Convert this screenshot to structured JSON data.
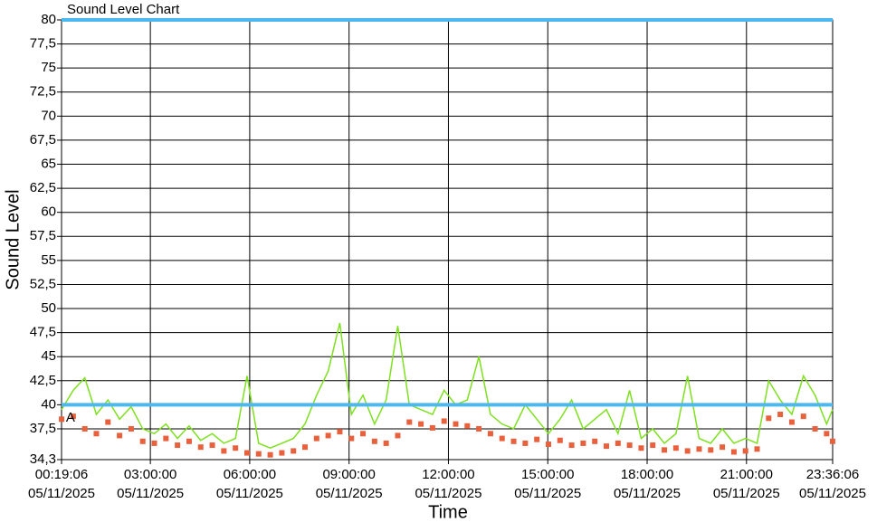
{
  "chart_data": {
    "type": "line",
    "title": "Sound Level Chart",
    "x_label": "Time",
    "y_label": "Sound Level",
    "xlim": [
      0.3183,
      23.6017
    ],
    "ylim": [
      34.3,
      80
    ],
    "xticks": [
      {
        "value": 0.3183,
        "label": "00:19:06 05/11/2025"
      },
      {
        "value": 3,
        "label": "03:00:00 05/11/2025"
      },
      {
        "value": 6,
        "label": "06:00:00 05/11/2025"
      },
      {
        "value": 9,
        "label": "09:00:00 05/11/2025"
      },
      {
        "value": 12,
        "label": "12:00:00 05/11/2025"
      },
      {
        "value": 15,
        "label": "15:00:00 05/11/2025"
      },
      {
        "value": 18,
        "label": "18:00:00 05/11/2025"
      },
      {
        "value": 21,
        "label": "21:00:00 05/11/2025"
      },
      {
        "value": 23.6017,
        "label": "23:36:06 05/11/2025"
      }
    ],
    "yticks": [
      {
        "value": 34.3,
        "label": "34,3"
      },
      {
        "value": 37.5,
        "label": "37,5"
      },
      40,
      {
        "value": 42.5,
        "label": "42,5"
      },
      45,
      {
        "value": 47.5,
        "label": "47,5"
      },
      50,
      {
        "value": 52.5,
        "label": "52,5"
      },
      55,
      {
        "value": 57.5,
        "label": "57,5"
      },
      60,
      {
        "value": 62.5,
        "label": "62,5"
      },
      65,
      {
        "value": 67.5,
        "label": "67,5"
      },
      70,
      {
        "value": 72.5,
        "label": "72,5"
      },
      75,
      {
        "value": 77.5,
        "label": "77,5"
      },
      80
    ],
    "grid": true,
    "thresholds": [
      {
        "value": 40,
        "color": "#4db8f0"
      },
      {
        "value": 80,
        "color": "#4db8f0"
      }
    ],
    "annotation": {
      "text": "A",
      "x": 0.45,
      "y": 38.6
    },
    "x": [
      0.32,
      0.67,
      1.02,
      1.37,
      1.72,
      2.07,
      2.42,
      2.77,
      3.12,
      3.47,
      3.82,
      4.17,
      4.52,
      4.87,
      5.22,
      5.57,
      5.92,
      6.27,
      6.62,
      6.97,
      7.32,
      7.67,
      8.02,
      8.37,
      8.72,
      9.07,
      9.42,
      9.77,
      10.12,
      10.47,
      10.82,
      11.17,
      11.52,
      11.87,
      12.22,
      12.57,
      12.92,
      13.27,
      13.62,
      13.97,
      14.32,
      14.67,
      15.02,
      15.37,
      15.72,
      16.07,
      16.42,
      16.77,
      17.12,
      17.47,
      17.82,
      18.17,
      18.52,
      18.87,
      19.22,
      19.57,
      19.92,
      20.27,
      20.62,
      20.97,
      21.32,
      21.67,
      22.02,
      22.37,
      22.72,
      23.07,
      23.42,
      23.6
    ],
    "series": [
      {
        "color": "#7ee01e",
        "style": "line",
        "values": [
          39.5,
          41.5,
          42.8,
          39.0,
          40.5,
          38.5,
          39.8,
          37.5,
          37.0,
          38.0,
          36.5,
          37.8,
          36.3,
          37.0,
          36.0,
          36.5,
          43.0,
          36.0,
          35.5,
          36.0,
          36.5,
          38.0,
          41.0,
          43.5,
          48.5,
          39.0,
          41.0,
          38.0,
          40.5,
          48.2,
          40.0,
          39.5,
          39.0,
          41.5,
          40.0,
          40.5,
          45.0,
          39.0,
          38.0,
          37.5,
          40.0,
          38.5,
          37.0,
          38.5,
          40.5,
          37.5,
          38.5,
          39.5,
          37.0,
          41.5,
          36.5,
          37.5,
          36.0,
          37.0,
          43.0,
          36.5,
          36.0,
          37.5,
          36.0,
          36.5,
          36.0,
          42.5,
          40.5,
          39.0,
          43.0,
          41.0,
          38.0,
          39.5
        ]
      },
      {
        "color": "#e8603c",
        "style": "markers",
        "values": [
          38.5,
          38.8,
          37.5,
          37.0,
          38.2,
          36.8,
          37.5,
          36.2,
          36.0,
          36.5,
          35.8,
          36.2,
          35.6,
          35.8,
          35.2,
          35.5,
          35.0,
          34.9,
          34.8,
          35.0,
          35.2,
          35.6,
          36.5,
          36.8,
          37.2,
          36.5,
          37.0,
          36.2,
          36.0,
          36.8,
          38.2,
          38.0,
          37.6,
          38.3,
          38.0,
          37.8,
          37.5,
          37.0,
          36.5,
          36.2,
          36.0,
          36.4,
          35.9,
          36.3,
          35.8,
          36.0,
          36.2,
          35.7,
          36.0,
          35.8,
          35.5,
          35.8,
          35.3,
          35.5,
          35.2,
          35.4,
          35.3,
          35.6,
          35.1,
          35.2,
          35.4,
          38.6,
          39.0,
          38.2,
          38.8,
          37.5,
          37.0,
          36.2
        ]
      }
    ]
  }
}
